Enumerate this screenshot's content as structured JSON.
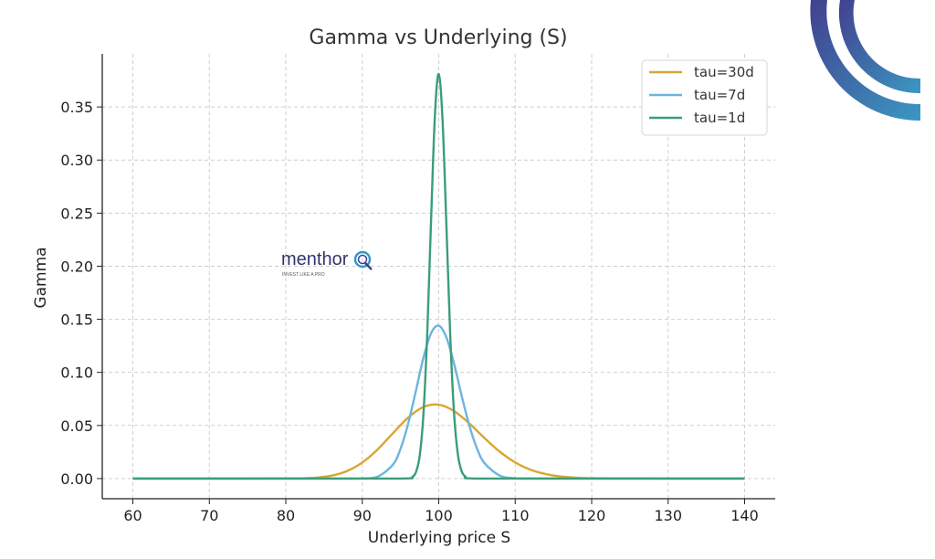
{
  "chart_data": {
    "type": "line",
    "title": "Gamma vs Underlying (S)",
    "xlabel": "Underlying price S",
    "ylabel": "Gamma",
    "xlim": [
      56,
      144
    ],
    "ylim": [
      -0.019,
      0.4
    ],
    "xticks": [
      "60",
      "70",
      "80",
      "90",
      "100",
      "110",
      "120",
      "130",
      "140"
    ],
    "yticks": [
      "0.00",
      "0.05",
      "0.10",
      "0.15",
      "0.20",
      "0.25",
      "0.30",
      "0.35"
    ],
    "grid": true,
    "legend_position": "top-right",
    "series": [
      {
        "name": "tau=30d",
        "color": "#d9a632",
        "x": [
          60,
          70,
          80,
          82,
          84,
          86,
          88,
          90,
          92,
          94,
          96,
          98,
          100,
          102,
          104,
          106,
          108,
          110,
          112,
          114,
          116,
          118,
          120,
          130,
          140
        ],
        "y": [
          0,
          0,
          5e-05,
          0.00024,
          0.00088,
          0.00276,
          0.00704,
          0.0151,
          0.0274,
          0.0426,
          0.0574,
          0.0674,
          0.0696,
          0.0636,
          0.0519,
          0.038,
          0.0252,
          0.0152,
          0.0083,
          0.0042,
          0.00196,
          0.00083,
          0.00034,
          0,
          0
        ]
      },
      {
        "name": "tau=7d",
        "color": "#6cb4e0",
        "x": [
          60,
          80,
          88,
          90,
          92,
          94,
          95,
          96,
          97,
          98,
          99,
          100,
          101,
          102,
          103,
          104,
          105,
          106,
          108,
          110,
          112,
          120,
          140
        ],
        "y": [
          0,
          0,
          0,
          0.00012,
          0.00175,
          0.013,
          0.028,
          0.0517,
          0.0822,
          0.1139,
          0.1369,
          0.144,
          0.133,
          0.1083,
          0.0779,
          0.05,
          0.0284,
          0.0144,
          0.0027,
          0.00034,
          3e-05,
          0,
          0
        ]
      },
      {
        "name": "tau=1d",
        "color": "#3a9e78",
        "x": [
          60,
          90,
          96,
          96.5,
          97,
          97.5,
          98,
          98.5,
          99,
          99.5,
          100,
          100.5,
          101,
          101.5,
          102,
          102.5,
          103,
          103.5,
          104,
          110,
          140
        ],
        "y": [
          0,
          0,
          0.0002,
          0.0012,
          0.0057,
          0.0208,
          0.061,
          0.1375,
          0.2439,
          0.3422,
          0.3811,
          0.3376,
          0.2389,
          0.1358,
          0.0619,
          0.0228,
          0.0068,
          0.0017,
          0.0002,
          0,
          0
        ]
      }
    ]
  },
  "watermark": {
    "brand": "menthor",
    "tagline": "INVEST LIKE A PRO",
    "colors": [
      "#3f3f8f",
      "#3a97c0"
    ]
  }
}
